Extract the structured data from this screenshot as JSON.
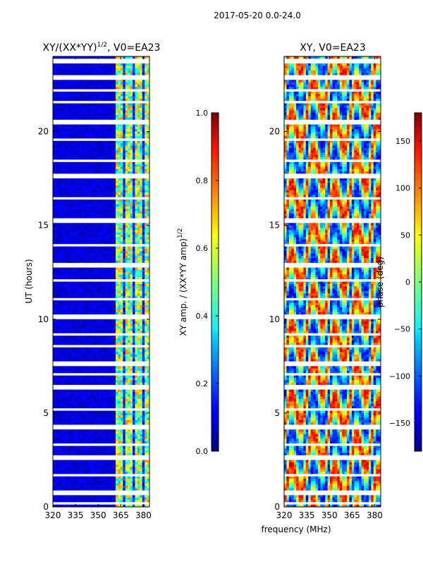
{
  "suptitle": "2017-05-20 0.0-24.0",
  "xlabel": "frequency (MHz)",
  "chart_data": [
    {
      "type": "heatmap",
      "title": "XY/(XX*YY)",
      "title_exponent": "1/2",
      "title_suffix": ", V0=EA23",
      "xlabel": "frequency (MHz)",
      "ylabel": "UT (hours)",
      "xlim": [
        320,
        384
      ],
      "ylim": [
        0,
        24
      ],
      "xticks": [
        320,
        335,
        350,
        365,
        380
      ],
      "yticks": [
        0,
        5,
        10,
        15,
        20
      ],
      "colormap": "jet",
      "colorbar": {
        "label": "XY amp. / (XX*YY amp)",
        "label_exponent": "1/2",
        "range": [
          0.0,
          1.0
        ],
        "ticks": [
          "0.0",
          "0.2",
          "0.4",
          "0.6",
          "0.8",
          "1.0"
        ]
      }
    },
    {
      "type": "heatmap",
      "title": "XY, V0=EA23",
      "xlabel": "frequency (MHz)",
      "ylabel": "",
      "xlim": [
        320,
        384
      ],
      "ylim": [
        0,
        24
      ],
      "xticks": [
        320,
        335,
        350,
        365,
        380
      ],
      "yticks": [
        0,
        5,
        10,
        15,
        20
      ],
      "colormap": "jet",
      "colorbar": {
        "label": "phase (deg)",
        "range": [
          -180,
          180
        ],
        "ticks": [
          "150",
          "100",
          "50",
          "0",
          "−50",
          "−100",
          "−150"
        ]
      }
    }
  ]
}
